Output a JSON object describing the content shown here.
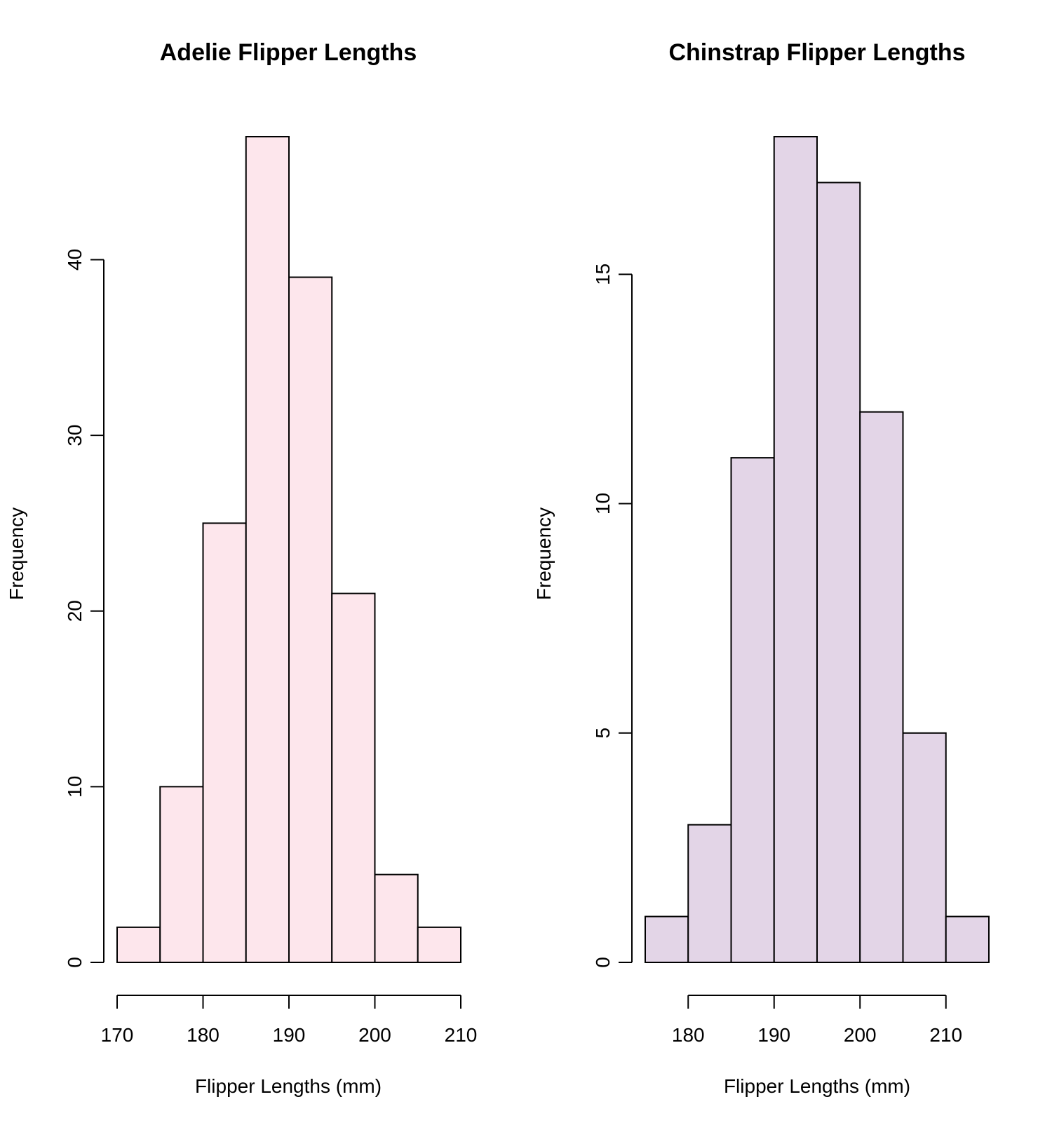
{
  "chart_data": [
    {
      "type": "bar",
      "title": "Adelie Flipper Lengths",
      "xlabel": "Flipper Lengths (mm)",
      "ylabel": "Frequency",
      "bin_edges": [
        170,
        175,
        180,
        185,
        190,
        195,
        200,
        205,
        210
      ],
      "values": [
        2,
        10,
        25,
        47,
        39,
        21,
        5,
        2
      ],
      "xlim": [
        170,
        210
      ],
      "ylim": [
        0,
        47
      ],
      "x_ticks": [
        170,
        180,
        190,
        200,
        210
      ],
      "y_ticks": [
        0,
        10,
        20,
        30,
        40
      ],
      "bar_color": "#fde6ec",
      "grid": false
    },
    {
      "type": "bar",
      "title": "Chinstrap Flipper Lengths",
      "xlabel": "Flipper Lengths (mm)",
      "ylabel": "Frequency",
      "bin_edges": [
        175,
        180,
        185,
        190,
        195,
        200,
        205,
        210,
        215
      ],
      "values": [
        1,
        3,
        11,
        18,
        17,
        12,
        5,
        1
      ],
      "xlim": [
        175,
        215
      ],
      "ylim": [
        0,
        18
      ],
      "x_ticks": [
        180,
        190,
        200,
        210
      ],
      "y_ticks": [
        0,
        5,
        10,
        15
      ],
      "bar_color": "#e3d5e7",
      "grid": false
    }
  ]
}
